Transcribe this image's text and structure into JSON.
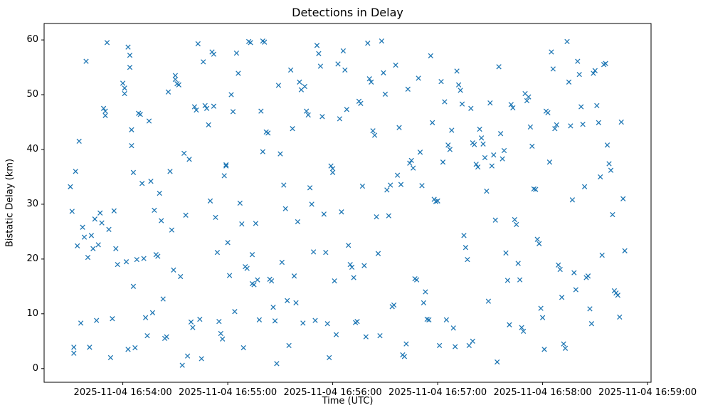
{
  "chart_data": {
    "type": "scatter",
    "title": "Detections in Delay",
    "xlabel": "Time (UTC)",
    "ylabel": "Bistatic Delay (km)",
    "marker": "x",
    "marker_color": "#1f77b4",
    "grid": false,
    "legend": "none",
    "x_axis": {
      "unit": "seconds after 2025-11-04 16:54:00 UTC",
      "lim": [
        -45,
        302
      ],
      "ticks": [
        0,
        60,
        120,
        180,
        240,
        300
      ],
      "tick_labels": [
        "2025-11-04 16:54:00",
        "2025-11-04 16:55:00",
        "2025-11-04 16:56:00",
        "2025-11-04 16:57:00",
        "2025-11-04 16:58:00",
        "2025-11-04 16:59:00"
      ]
    },
    "y_axis": {
      "lim": [
        -2.5,
        63.0
      ],
      "ticks": [
        0,
        10,
        20,
        30,
        40,
        50,
        60
      ],
      "tick_labels": [
        "0",
        "10",
        "20",
        "30",
        "40",
        "50",
        "60"
      ]
    },
    "points": [
      [
        -30,
        33.2
      ],
      [
        -29,
        28.7
      ],
      [
        -28,
        3.9
      ],
      [
        -28,
        2.8
      ],
      [
        -27,
        36.0
      ],
      [
        -26,
        22.4
      ],
      [
        -25,
        41.5
      ],
      [
        -24,
        8.3
      ],
      [
        -23,
        25.8
      ],
      [
        -22,
        24.0
      ],
      [
        -21,
        56.1
      ],
      [
        -20,
        20.3
      ],
      [
        -19,
        3.9
      ],
      [
        -18,
        24.3
      ],
      [
        -17,
        21.9
      ],
      [
        -16,
        27.3
      ],
      [
        -15,
        8.8
      ],
      [
        -14,
        22.6
      ],
      [
        -13,
        28.4
      ],
      [
        -12,
        26.6
      ],
      [
        -11,
        47.5
      ],
      [
        -10,
        47.0
      ],
      [
        -10,
        46.2
      ],
      [
        -9,
        59.5
      ],
      [
        -8,
        25.4
      ],
      [
        -7,
        2.0
      ],
      [
        -6,
        9.1
      ],
      [
        -5,
        28.8
      ],
      [
        -4,
        21.9
      ],
      [
        -3,
        19.0
      ],
      [
        0,
        52.1
      ],
      [
        1,
        51.2
      ],
      [
        1,
        50.2
      ],
      [
        2,
        19.5
      ],
      [
        3,
        3.5
      ],
      [
        3,
        58.7
      ],
      [
        4,
        57.2
      ],
      [
        4,
        55.0
      ],
      [
        5,
        43.6
      ],
      [
        5,
        40.7
      ],
      [
        6,
        35.8
      ],
      [
        6,
        15.0
      ],
      [
        7,
        3.8
      ],
      [
        8,
        19.9
      ],
      [
        9,
        46.6
      ],
      [
        10,
        46.4
      ],
      [
        11,
        33.8
      ],
      [
        12,
        20.1
      ],
      [
        13,
        9.3
      ],
      [
        14,
        6.0
      ],
      [
        15,
        45.2
      ],
      [
        16,
        34.2
      ],
      [
        17,
        10.2
      ],
      [
        18,
        28.9
      ],
      [
        19,
        20.8
      ],
      [
        20,
        20.5
      ],
      [
        21,
        32.0
      ],
      [
        22,
        27.0
      ],
      [
        23,
        12.7
      ],
      [
        24,
        5.5
      ],
      [
        25,
        5.8
      ],
      [
        26,
        50.5
      ],
      [
        27,
        36.0
      ],
      [
        28,
        25.3
      ],
      [
        29,
        18.0
      ],
      [
        30,
        53.5
      ],
      [
        30,
        52.8
      ],
      [
        31,
        52.0
      ],
      [
        32,
        51.8
      ],
      [
        33,
        16.8
      ],
      [
        34,
        0.6
      ],
      [
        35,
        39.3
      ],
      [
        36,
        28.0
      ],
      [
        37,
        2.3
      ],
      [
        38,
        38.2
      ],
      [
        39,
        8.5
      ],
      [
        40,
        7.5
      ],
      [
        41,
        47.8
      ],
      [
        42,
        47.2
      ],
      [
        43,
        59.3
      ],
      [
        44,
        9.0
      ],
      [
        45,
        1.8
      ],
      [
        46,
        56.0
      ],
      [
        47,
        48.0
      ],
      [
        48,
        47.5
      ],
      [
        49,
        44.5
      ],
      [
        50,
        30.6
      ],
      [
        51,
        57.8
      ],
      [
        52,
        57.4
      ],
      [
        52,
        47.9
      ],
      [
        53,
        27.6
      ],
      [
        54,
        21.2
      ],
      [
        55,
        8.6
      ],
      [
        56,
        6.4
      ],
      [
        57,
        5.4
      ],
      [
        58,
        35.2
      ],
      [
        59,
        37.2
      ],
      [
        59,
        37.0
      ],
      [
        60,
        23.0
      ],
      [
        61,
        17.0
      ],
      [
        62,
        50.0
      ],
      [
        63,
        46.9
      ],
      [
        64,
        10.4
      ],
      [
        65,
        57.6
      ],
      [
        66,
        53.9
      ],
      [
        67,
        30.2
      ],
      [
        68,
        26.4
      ],
      [
        69,
        3.8
      ],
      [
        70,
        18.6
      ],
      [
        71,
        18.3
      ],
      [
        72,
        59.7
      ],
      [
        73,
        59.5
      ],
      [
        74,
        20.8
      ],
      [
        74,
        15.5
      ],
      [
        75,
        15.3
      ],
      [
        76,
        26.5
      ],
      [
        77,
        16.2
      ],
      [
        78,
        8.9
      ],
      [
        79,
        47.0
      ],
      [
        80,
        39.6
      ],
      [
        80,
        59.8
      ],
      [
        81,
        59.6
      ],
      [
        82,
        43.2
      ],
      [
        83,
        43.0
      ],
      [
        84,
        16.3
      ],
      [
        85,
        16.0
      ],
      [
        86,
        11.2
      ],
      [
        87,
        8.7
      ],
      [
        88,
        0.9
      ],
      [
        89,
        51.7
      ],
      [
        90,
        39.2
      ],
      [
        91,
        19.4
      ],
      [
        92,
        33.5
      ],
      [
        93,
        29.2
      ],
      [
        94,
        12.4
      ],
      [
        95,
        4.2
      ],
      [
        96,
        54.5
      ],
      [
        97,
        43.8
      ],
      [
        98,
        16.9
      ],
      [
        99,
        12.0
      ],
      [
        100,
        26.8
      ],
      [
        101,
        52.3
      ],
      [
        102,
        50.9
      ],
      [
        103,
        8.3
      ],
      [
        104,
        51.5
      ],
      [
        105,
        47.0
      ],
      [
        106,
        46.3
      ],
      [
        107,
        33.0
      ],
      [
        108,
        30.0
      ],
      [
        109,
        21.3
      ],
      [
        110,
        8.8
      ],
      [
        111,
        59.0
      ],
      [
        112,
        57.5
      ],
      [
        113,
        55.2
      ],
      [
        114,
        46.0
      ],
      [
        115,
        28.2
      ],
      [
        116,
        21.2
      ],
      [
        117,
        8.2
      ],
      [
        118,
        2.0
      ],
      [
        119,
        37.0
      ],
      [
        120,
        36.5
      ],
      [
        120,
        35.8
      ],
      [
        121,
        16.0
      ],
      [
        122,
        6.2
      ],
      [
        123,
        55.6
      ],
      [
        124,
        45.6
      ],
      [
        125,
        28.6
      ],
      [
        126,
        58.0
      ],
      [
        127,
        54.5
      ],
      [
        128,
        47.3
      ],
      [
        129,
        22.5
      ],
      [
        130,
        19.0
      ],
      [
        131,
        18.5
      ],
      [
        132,
        16.6
      ],
      [
        133,
        8.4
      ],
      [
        134,
        8.6
      ],
      [
        135,
        48.8
      ],
      [
        136,
        48.4
      ],
      [
        137,
        33.3
      ],
      [
        138,
        18.8
      ],
      [
        139,
        5.8
      ],
      [
        140,
        59.4
      ],
      [
        141,
        52.9
      ],
      [
        142,
        52.3
      ],
      [
        143,
        43.4
      ],
      [
        144,
        42.6
      ],
      [
        145,
        27.7
      ],
      [
        146,
        21.0
      ],
      [
        147,
        6.0
      ],
      [
        148,
        59.8
      ],
      [
        149,
        54.0
      ],
      [
        150,
        50.1
      ],
      [
        151,
        32.6
      ],
      [
        152,
        27.9
      ],
      [
        153,
        33.5
      ],
      [
        154,
        11.3
      ],
      [
        155,
        11.6
      ],
      [
        156,
        55.4
      ],
      [
        157,
        35.3
      ],
      [
        158,
        44.0
      ],
      [
        159,
        33.6
      ],
      [
        160,
        2.5
      ],
      [
        161,
        2.2
      ],
      [
        162,
        4.5
      ],
      [
        163,
        51.0
      ],
      [
        164,
        37.5
      ],
      [
        165,
        38.0
      ],
      [
        166,
        36.6
      ],
      [
        167,
        16.4
      ],
      [
        168,
        16.2
      ],
      [
        169,
        53.0
      ],
      [
        170,
        39.5
      ],
      [
        171,
        33.4
      ],
      [
        172,
        12.0
      ],
      [
        173,
        14.0
      ],
      [
        174,
        9.0
      ],
      [
        175,
        8.9
      ],
      [
        176,
        57.1
      ],
      [
        177,
        44.9
      ],
      [
        178,
        30.9
      ],
      [
        179,
        30.5
      ],
      [
        180,
        30.6
      ],
      [
        181,
        4.2
      ],
      [
        182,
        52.4
      ],
      [
        183,
        37.7
      ],
      [
        184,
        48.7
      ],
      [
        185,
        8.9
      ],
      [
        186,
        40.8
      ],
      [
        187,
        40.0
      ],
      [
        188,
        43.5
      ],
      [
        189,
        7.4
      ],
      [
        190,
        4.0
      ],
      [
        191,
        54.3
      ],
      [
        192,
        51.8
      ],
      [
        193,
        50.8
      ],
      [
        194,
        48.3
      ],
      [
        195,
        24.3
      ],
      [
        196,
        22.1
      ],
      [
        197,
        19.9
      ],
      [
        198,
        4.2
      ],
      [
        199,
        47.5
      ],
      [
        200,
        41.2
      ],
      [
        200,
        5.0
      ],
      [
        201,
        40.9
      ],
      [
        202,
        37.3
      ],
      [
        203,
        36.8
      ],
      [
        204,
        43.7
      ],
      [
        205,
        42.1
      ],
      [
        206,
        41.0
      ],
      [
        207,
        38.5
      ],
      [
        208,
        32.4
      ],
      [
        209,
        12.3
      ],
      [
        210,
        48.5
      ],
      [
        211,
        37.0
      ],
      [
        212,
        39.0
      ],
      [
        213,
        27.1
      ],
      [
        214,
        1.2
      ],
      [
        215,
        55.1
      ],
      [
        216,
        42.9
      ],
      [
        217,
        38.3
      ],
      [
        218,
        39.8
      ],
      [
        219,
        21.1
      ],
      [
        220,
        16.1
      ],
      [
        221,
        8.0
      ],
      [
        222,
        48.2
      ],
      [
        223,
        47.6
      ],
      [
        224,
        27.2
      ],
      [
        225,
        26.3
      ],
      [
        226,
        19.2
      ],
      [
        227,
        16.2
      ],
      [
        228,
        7.5
      ],
      [
        229,
        6.8
      ],
      [
        230,
        50.2
      ],
      [
        231,
        48.9
      ],
      [
        232,
        49.6
      ],
      [
        233,
        44.1
      ],
      [
        234,
        40.6
      ],
      [
        235,
        32.8
      ],
      [
        236,
        32.7
      ],
      [
        237,
        23.6
      ],
      [
        238,
        22.8
      ],
      [
        239,
        11.0
      ],
      [
        240,
        9.3
      ],
      [
        241,
        3.5
      ],
      [
        242,
        47.0
      ],
      [
        243,
        46.7
      ],
      [
        244,
        37.7
      ],
      [
        245,
        57.8
      ],
      [
        246,
        54.7
      ],
      [
        247,
        43.8
      ],
      [
        248,
        44.5
      ],
      [
        249,
        18.9
      ],
      [
        250,
        18.1
      ],
      [
        251,
        13.0
      ],
      [
        252,
        4.5
      ],
      [
        253,
        3.7
      ],
      [
        254,
        59.7
      ],
      [
        255,
        52.3
      ],
      [
        256,
        44.3
      ],
      [
        257,
        30.8
      ],
      [
        258,
        17.5
      ],
      [
        259,
        14.4
      ],
      [
        260,
        56.1
      ],
      [
        261,
        53.7
      ],
      [
        262,
        47.8
      ],
      [
        263,
        44.6
      ],
      [
        264,
        33.2
      ],
      [
        265,
        16.6
      ],
      [
        266,
        16.9
      ],
      [
        267,
        10.9
      ],
      [
        268,
        8.2
      ],
      [
        269,
        53.9
      ],
      [
        270,
        54.4
      ],
      [
        271,
        48.0
      ],
      [
        272,
        44.9
      ],
      [
        273,
        35.0
      ],
      [
        274,
        20.7
      ],
      [
        275,
        55.5
      ],
      [
        276,
        55.7
      ],
      [
        277,
        40.8
      ],
      [
        278,
        37.4
      ],
      [
        279,
        36.2
      ],
      [
        280,
        28.1
      ],
      [
        281,
        14.2
      ],
      [
        282,
        13.8
      ],
      [
        283,
        13.4
      ],
      [
        284,
        9.4
      ],
      [
        285,
        45.0
      ],
      [
        286,
        31.0
      ],
      [
        287,
        21.5
      ]
    ]
  }
}
